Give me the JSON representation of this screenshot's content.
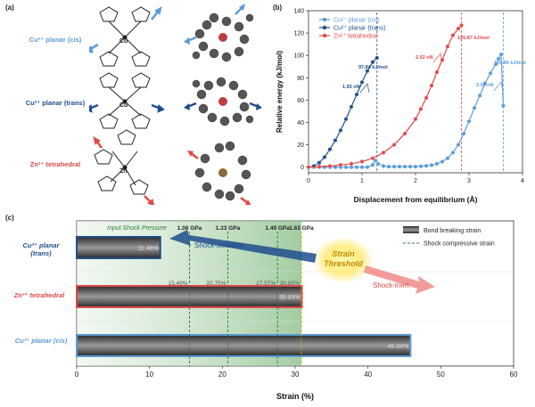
{
  "panel_a": {
    "label": "(a)",
    "rows": [
      {
        "name": "Cu²⁺ planar (cis)",
        "color": "#5b9bd5",
        "metal": "Cu"
      },
      {
        "name": "Cu²⁺ planar (trans)",
        "color": "#1f4e8c",
        "metal": "Cu"
      },
      {
        "name": "Zn²⁺ tetrahedral",
        "color": "#e04848",
        "metal": "Zn"
      }
    ]
  },
  "panel_b": {
    "label": "(b)",
    "ylabel": "Relative energy (kJ/mol)",
    "xlabel": "Displacement from equilibrium (Å)",
    "legend": [
      "Cu²⁺ planar (cis)",
      "Cu²⁺ planar (trans)",
      "Zn²⁺ tetrahedral"
    ],
    "annotations": {
      "trans_energy": "97.84 kJ/mol",
      "trans_force": "1.93 nN",
      "zn_energy": "126.87 kJ/mol",
      "zn_force": "2.02 nN",
      "cis_energy": "100.85 kJ/mol",
      "cis_force": "2.08 nN"
    }
  },
  "panel_c": {
    "label": "(c)",
    "rows": [
      "Cu²⁺ planar (trans)",
      "Zn²⁺ tetrahedral",
      "Cu²⁺ planar (cis)"
    ],
    "shock_title": "Input Shock Pressure",
    "pressures": [
      "1.08 GPa",
      "1.33 GPa",
      "1.49 GPa",
      "1.63 GPa"
    ],
    "strain_labels": [
      "15.49%",
      "20.75%",
      "27.57%",
      "30.85%"
    ],
    "threshold_line1": "Strain",
    "threshold_line2": "Threshold",
    "shock_sensitive": "Shock-sensitive",
    "shock_inert": "Shock-inert",
    "legend_bar": "Bond breaking strain",
    "legend_line": "Shock compressive strain"
  },
  "chart_data": [
    {
      "type": "line",
      "title": "",
      "xlabel": "Displacement from equilibrium (Å)",
      "ylabel": "Relative energy (kJ/mol)",
      "xlim": [
        0,
        4
      ],
      "ylim": [
        -5,
        140
      ],
      "xticks": [
        0,
        1,
        2,
        3,
        4
      ],
      "yticks": [
        0,
        20,
        40,
        60,
        80,
        100,
        120,
        140
      ],
      "series": [
        {
          "name": "Cu²⁺ planar (cis)",
          "color": "#5b9bd5",
          "x": [
            0,
            0.1,
            0.2,
            0.3,
            0.4,
            0.5,
            0.6,
            0.7,
            0.8,
            0.9,
            1.0,
            1.1,
            1.2,
            1.25,
            1.3,
            1.4,
            1.5,
            1.6,
            1.7,
            1.8,
            1.9,
            2.0,
            2.1,
            2.2,
            2.3,
            2.4,
            2.5,
            2.6,
            2.7,
            2.8,
            2.9,
            3.0,
            3.1,
            3.2,
            3.3,
            3.4,
            3.5,
            3.55,
            3.6,
            3.64
          ],
          "y": [
            0,
            0,
            0,
            0,
            0,
            0,
            0,
            0,
            0,
            0,
            0,
            0,
            2,
            6,
            3,
            1,
            0.5,
            0.5,
            0.5,
            0.5,
            0.5,
            0.5,
            0.8,
            1.2,
            1.8,
            3,
            5,
            8,
            13,
            20,
            30,
            41,
            53,
            64,
            75,
            84,
            92,
            97,
            100.85,
            55
          ]
        },
        {
          "name": "Cu²⁺ planar (trans)",
          "color": "#1f4e8c",
          "x": [
            0,
            0.1,
            0.2,
            0.3,
            0.4,
            0.5,
            0.6,
            0.7,
            0.8,
            0.9,
            1.0,
            1.1,
            1.2,
            1.28
          ],
          "y": [
            0,
            1,
            4,
            9,
            16,
            24,
            33,
            43,
            54,
            65,
            76,
            86,
            94,
            97.84
          ]
        },
        {
          "name": "Zn²⁺ tetrahedral",
          "color": "#e04848",
          "x": [
            0,
            0.2,
            0.4,
            0.6,
            0.8,
            1.0,
            1.2,
            1.4,
            1.6,
            1.8,
            2.0,
            2.1,
            2.2,
            2.3,
            2.4,
            2.5,
            2.6,
            2.7,
            2.8,
            2.86
          ],
          "y": [
            0,
            0.5,
            1,
            2,
            3,
            5,
            8,
            13,
            20,
            30,
            43,
            52,
            62,
            73,
            85,
            96,
            108,
            118,
            124,
            126.87
          ]
        }
      ],
      "vlines": [
        1.28,
        2.86,
        3.64
      ]
    },
    {
      "type": "bar",
      "orientation": "horizontal",
      "xlabel": "Strain (%)",
      "xlim": [
        0,
        60
      ],
      "xticks": [
        0,
        10,
        20,
        30,
        40,
        50,
        60
      ],
      "categories": [
        "Cu²⁺ planar (trans)",
        "Zn²⁺ tetrahedral",
        "Cu²⁺ planar (cis)"
      ],
      "values": [
        11.48,
        30.93,
        45.84
      ],
      "value_labels": [
        "11.48%",
        "30.93%",
        "45.84%"
      ],
      "shock_strains": [
        15.49,
        20.75,
        27.57,
        30.85
      ],
      "shock_pressures": [
        "1.08 GPa",
        "1.33 GPa",
        "1.49 GPa",
        "1.63 GPa"
      ]
    }
  ]
}
